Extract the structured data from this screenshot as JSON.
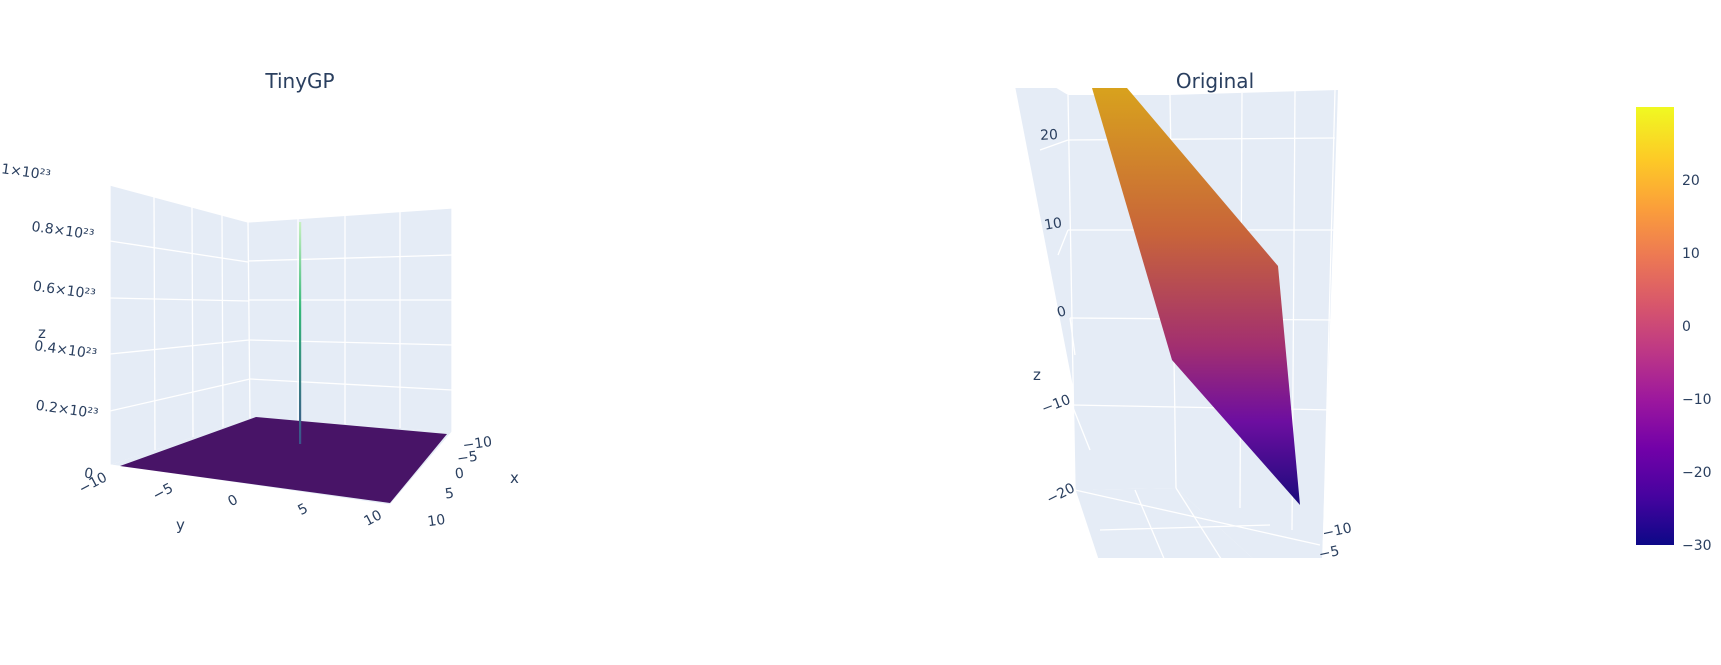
{
  "chart_data": [
    {
      "type": "surface",
      "title": "TinyGP",
      "xlabel": "x",
      "ylabel": "y",
      "zlabel": "z",
      "x_ticks": [
        "−10",
        "−5",
        "0",
        "5",
        "10"
      ],
      "y_ticks": [
        "−10",
        "−5",
        "0",
        "5",
        "10"
      ],
      "z_ticks": [
        "0",
        "0.2×10²³",
        "0.4×10²³",
        "0.6×10²³",
        "0.8×10²³",
        "1×10²³"
      ],
      "xlim": [
        -10,
        10
      ],
      "ylim": [
        -10,
        10
      ],
      "zlim": [
        0,
        1e+23
      ],
      "surface": {
        "base_z": 0,
        "spike_at": [
          0,
          0
        ],
        "spike_peak": 9.5e+22
      },
      "colorscale": [
        "#440154",
        "#31688e",
        "#35b779",
        "#fde725"
      ]
    },
    {
      "type": "surface",
      "title": "Original",
      "zlabel": "z",
      "x_ticks": [
        "−10",
        "−5"
      ],
      "z_ticks": [
        "−20",
        "−10",
        "0",
        "10",
        "20"
      ],
      "zlim": [
        -25,
        25
      ],
      "surface": {
        "shape": "plane",
        "z_min": -30,
        "z_max": 30
      },
      "colorscale": [
        "#0d0887",
        "#6a00a8",
        "#b12a90",
        "#e16462",
        "#fca636",
        "#f0f921"
      ]
    }
  ],
  "colorbar": {
    "ticks": [
      "20",
      "10",
      "0",
      "−10",
      "−20",
      "−30"
    ],
    "values": [
      20,
      10,
      0,
      -10,
      -20,
      -30
    ],
    "range": [
      -30,
      30
    ]
  }
}
